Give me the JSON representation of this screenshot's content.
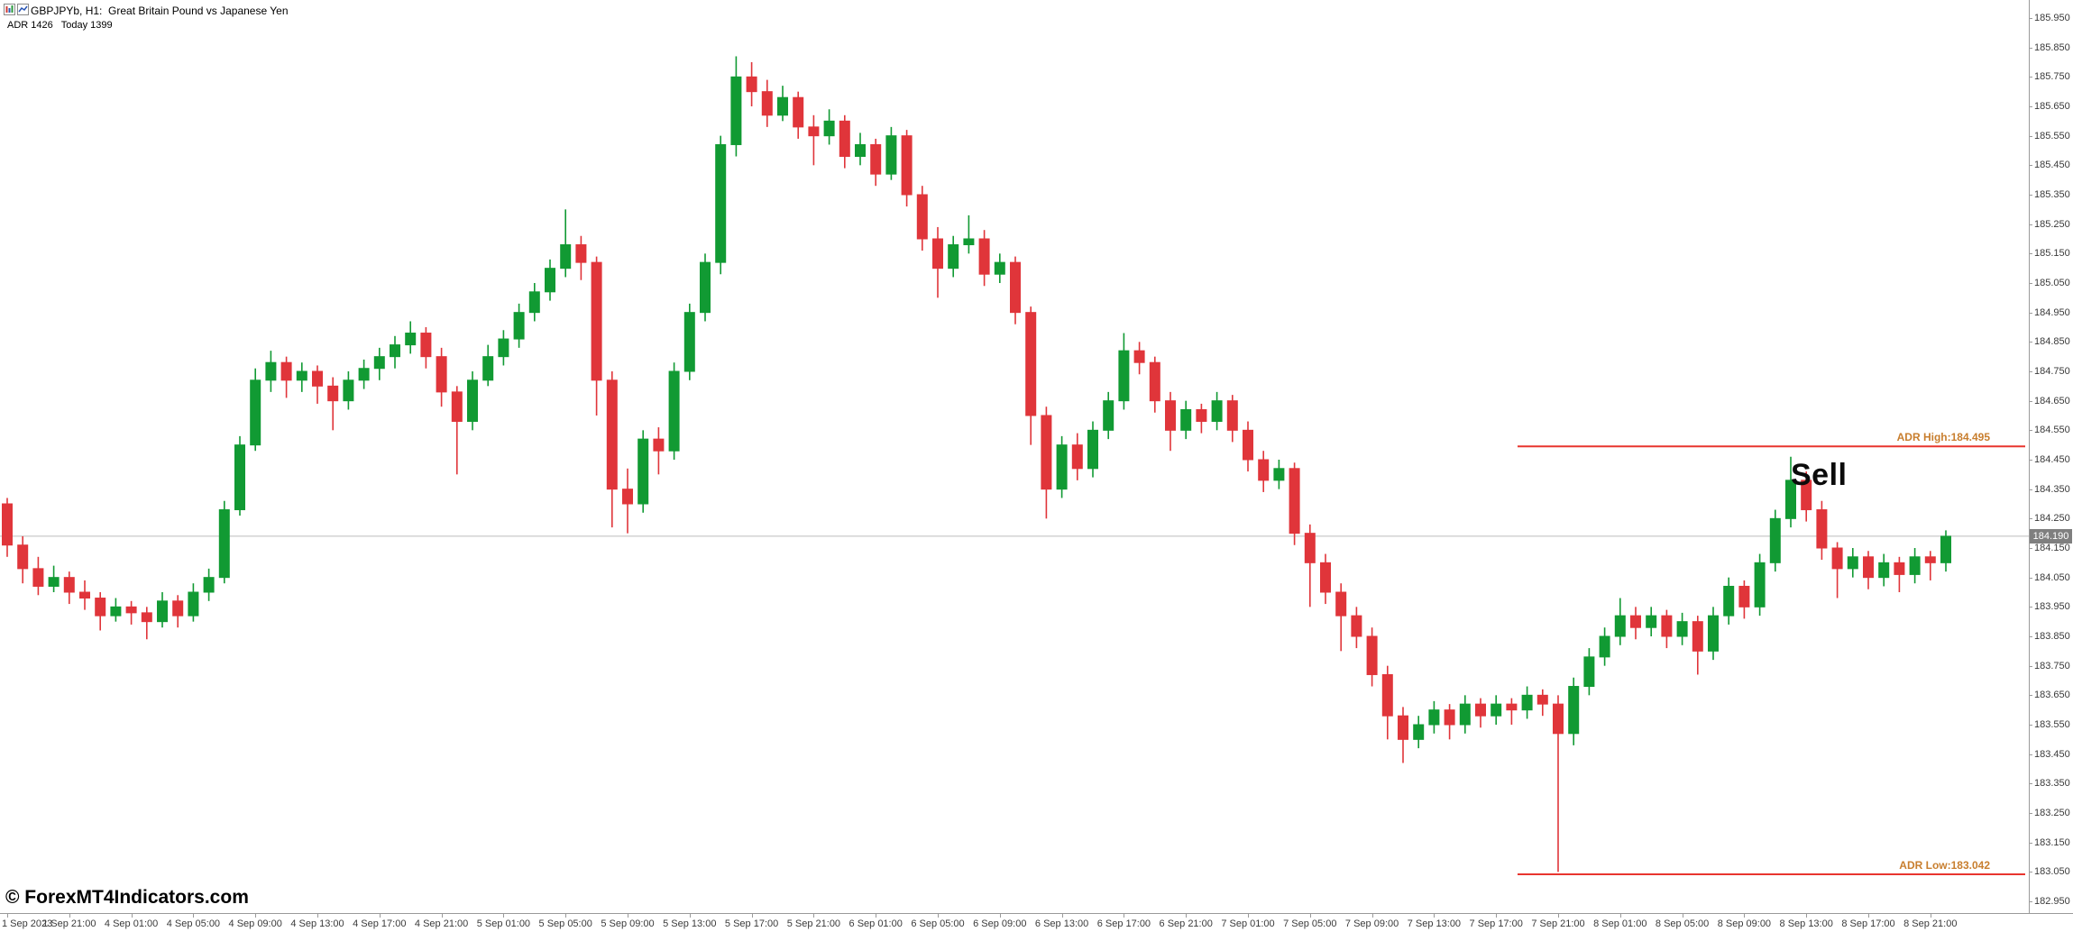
{
  "header": {
    "symbol_title": "GBPJPYb, H1:  Great Britain Pound vs Japanese Yen",
    "indicator_line": "ADR 1426   Today 1399"
  },
  "watermark": "© ForexMT4Indicators.com",
  "annotations": {
    "sell_label": "Sell"
  },
  "colors": {
    "up": "#119a33",
    "down": "#e0353a",
    "adr_line": "#e8352f",
    "adr_label": "#c87e2e",
    "bid_line": "#bdbdbd",
    "bid_tag_bg": "#7f7f7f",
    "axis_text": "#3a3a3a"
  },
  "chart_data": {
    "type": "candlestick",
    "symbol": "GBPJPYb",
    "timeframe": "H1",
    "bid": "184.190",
    "bid_value": 184.19,
    "ylim": [
      182.95,
      185.95
    ],
    "price_ticks": [
      "185.950",
      "185.850",
      "185.750",
      "185.650",
      "185.550",
      "185.450",
      "185.350",
      "185.250",
      "185.150",
      "185.050",
      "184.950",
      "184.850",
      "184.750",
      "184.650",
      "184.550",
      "184.450",
      "184.350",
      "184.250",
      "184.150",
      "184.050",
      "183.950",
      "183.850",
      "183.750",
      "183.650",
      "183.550",
      "183.450",
      "183.350",
      "183.250",
      "183.150",
      "183.050",
      "182.950"
    ],
    "x_tick_every": 4,
    "x_tick_labels": [
      "1 Sep 2023",
      "1 Sep 21:00",
      "4 Sep 01:00",
      "4 Sep 05:00",
      "4 Sep 09:00",
      "4 Sep 13:00",
      "4 Sep 17:00",
      "4 Sep 21:00",
      "5 Sep 01:00",
      "5 Sep 05:00",
      "5 Sep 09:00",
      "5 Sep 13:00",
      "5 Sep 17:00",
      "5 Sep 21:00",
      "6 Sep 01:00",
      "6 Sep 05:00",
      "6 Sep 09:00",
      "6 Sep 13:00",
      "6 Sep 17:00",
      "6 Sep 21:00",
      "7 Sep 01:00",
      "7 Sep 05:00",
      "7 Sep 09:00",
      "7 Sep 13:00",
      "7 Sep 17:00",
      "7 Sep 21:00",
      "8 Sep 01:00",
      "8 Sep 05:00",
      "8 Sep 09:00",
      "8 Sep 13:00",
      "8 Sep 17:00",
      "8 Sep 21:00"
    ],
    "adr_lines": [
      {
        "label": "ADR High:184.495",
        "price": 184.495
      },
      {
        "label": "ADR Low:183.042",
        "price": 183.042
      }
    ],
    "candles": [
      [
        184.3,
        184.32,
        184.12,
        184.16
      ],
      [
        184.16,
        184.19,
        184.03,
        184.08
      ],
      [
        184.08,
        184.12,
        183.99,
        184.02
      ],
      [
        184.02,
        184.09,
        184.0,
        184.05
      ],
      [
        184.05,
        184.07,
        183.96,
        184.0
      ],
      [
        184.0,
        184.04,
        183.94,
        183.98
      ],
      [
        183.98,
        184.0,
        183.87,
        183.92
      ],
      [
        183.92,
        183.98,
        183.9,
        183.95
      ],
      [
        183.95,
        183.97,
        183.89,
        183.93
      ],
      [
        183.93,
        183.95,
        183.84,
        183.9
      ],
      [
        183.9,
        184.0,
        183.88,
        183.97
      ],
      [
        183.97,
        183.99,
        183.88,
        183.92
      ],
      [
        183.92,
        184.03,
        183.9,
        184.0
      ],
      [
        184.0,
        184.08,
        183.97,
        184.05
      ],
      [
        184.05,
        184.31,
        184.03,
        184.28
      ],
      [
        184.28,
        184.53,
        184.26,
        184.5
      ],
      [
        184.5,
        184.76,
        184.48,
        184.72
      ],
      [
        184.72,
        184.82,
        184.68,
        184.78
      ],
      [
        184.78,
        184.8,
        184.66,
        184.72
      ],
      [
        184.72,
        184.78,
        184.68,
        184.75
      ],
      [
        184.75,
        184.77,
        184.64,
        184.7
      ],
      [
        184.7,
        184.73,
        184.55,
        184.65
      ],
      [
        184.65,
        184.75,
        184.62,
        184.72
      ],
      [
        184.72,
        184.79,
        184.69,
        184.76
      ],
      [
        184.76,
        184.83,
        184.72,
        184.8
      ],
      [
        184.8,
        184.87,
        184.76,
        184.84
      ],
      [
        184.84,
        184.92,
        184.81,
        184.88
      ],
      [
        184.88,
        184.9,
        184.76,
        184.8
      ],
      [
        184.8,
        184.83,
        184.63,
        184.68
      ],
      [
        184.68,
        184.7,
        184.4,
        184.58
      ],
      [
        184.58,
        184.75,
        184.55,
        184.72
      ],
      [
        184.72,
        184.84,
        184.7,
        184.8
      ],
      [
        184.8,
        184.89,
        184.77,
        184.86
      ],
      [
        184.86,
        184.98,
        184.83,
        184.95
      ],
      [
        184.95,
        185.05,
        184.92,
        185.02
      ],
      [
        185.02,
        185.13,
        184.99,
        185.1
      ],
      [
        185.1,
        185.3,
        185.07,
        185.18
      ],
      [
        185.18,
        185.21,
        185.06,
        185.12
      ],
      [
        185.12,
        185.14,
        184.6,
        184.72
      ],
      [
        184.72,
        184.75,
        184.22,
        184.35
      ],
      [
        184.35,
        184.42,
        184.2,
        184.3
      ],
      [
        184.3,
        184.55,
        184.27,
        184.52
      ],
      [
        184.52,
        184.56,
        184.4,
        184.48
      ],
      [
        184.48,
        184.78,
        184.45,
        184.75
      ],
      [
        184.75,
        184.98,
        184.72,
        184.95
      ],
      [
        184.95,
        185.15,
        184.92,
        185.12
      ],
      [
        185.12,
        185.55,
        185.08,
        185.52
      ],
      [
        185.52,
        185.82,
        185.48,
        185.75
      ],
      [
        185.75,
        185.8,
        185.65,
        185.7
      ],
      [
        185.7,
        185.74,
        185.58,
        185.62
      ],
      [
        185.62,
        185.72,
        185.6,
        185.68
      ],
      [
        185.68,
        185.7,
        185.54,
        185.58
      ],
      [
        185.58,
        185.62,
        185.45,
        185.55
      ],
      [
        185.55,
        185.64,
        185.52,
        185.6
      ],
      [
        185.6,
        185.62,
        185.44,
        185.48
      ],
      [
        185.48,
        185.56,
        185.45,
        185.52
      ],
      [
        185.52,
        185.54,
        185.38,
        185.42
      ],
      [
        185.42,
        185.58,
        185.4,
        185.55
      ],
      [
        185.55,
        185.57,
        185.31,
        185.35
      ],
      [
        185.35,
        185.38,
        185.16,
        185.2
      ],
      [
        185.2,
        185.24,
        185.0,
        185.1
      ],
      [
        185.1,
        185.21,
        185.07,
        185.18
      ],
      [
        185.18,
        185.28,
        185.15,
        185.2
      ],
      [
        185.2,
        185.23,
        185.04,
        185.08
      ],
      [
        185.08,
        185.15,
        185.05,
        185.12
      ],
      [
        185.12,
        185.14,
        184.91,
        184.95
      ],
      [
        184.95,
        184.97,
        184.5,
        184.6
      ],
      [
        184.6,
        184.63,
        184.25,
        184.35
      ],
      [
        184.35,
        184.53,
        184.32,
        184.5
      ],
      [
        184.5,
        184.54,
        184.38,
        184.42
      ],
      [
        184.42,
        184.58,
        184.39,
        184.55
      ],
      [
        184.55,
        184.68,
        184.52,
        184.65
      ],
      [
        184.65,
        184.88,
        184.62,
        184.82
      ],
      [
        184.82,
        184.85,
        184.74,
        184.78
      ],
      [
        184.78,
        184.8,
        184.61,
        184.65
      ],
      [
        184.65,
        184.68,
        184.48,
        184.55
      ],
      [
        184.55,
        184.65,
        184.52,
        184.62
      ],
      [
        184.62,
        184.64,
        184.54,
        184.58
      ],
      [
        184.58,
        184.68,
        184.55,
        184.65
      ],
      [
        184.65,
        184.67,
        184.51,
        184.55
      ],
      [
        184.55,
        184.58,
        184.41,
        184.45
      ],
      [
        184.45,
        184.48,
        184.34,
        184.38
      ],
      [
        184.38,
        184.45,
        184.35,
        184.42
      ],
      [
        184.42,
        184.44,
        184.16,
        184.2
      ],
      [
        184.2,
        184.23,
        183.95,
        184.1
      ],
      [
        184.1,
        184.13,
        183.96,
        184.0
      ],
      [
        184.0,
        184.03,
        183.8,
        183.92
      ],
      [
        183.92,
        183.95,
        183.81,
        183.85
      ],
      [
        183.85,
        183.88,
        183.68,
        183.72
      ],
      [
        183.72,
        183.75,
        183.5,
        183.58
      ],
      [
        183.58,
        183.61,
        183.42,
        183.5
      ],
      [
        183.5,
        183.58,
        183.47,
        183.55
      ],
      [
        183.55,
        183.63,
        183.52,
        183.6
      ],
      [
        183.6,
        183.62,
        183.5,
        183.55
      ],
      [
        183.55,
        183.65,
        183.52,
        183.62
      ],
      [
        183.62,
        183.64,
        183.54,
        183.58
      ],
      [
        183.58,
        183.65,
        183.55,
        183.62
      ],
      [
        183.62,
        183.64,
        183.55,
        183.6
      ],
      [
        183.6,
        183.68,
        183.57,
        183.65
      ],
      [
        183.65,
        183.67,
        183.58,
        183.62
      ],
      [
        183.62,
        183.65,
        183.05,
        183.52
      ],
      [
        183.52,
        183.71,
        183.48,
        183.68
      ],
      [
        183.68,
        183.81,
        183.65,
        183.78
      ],
      [
        183.78,
        183.88,
        183.75,
        183.85
      ],
      [
        183.85,
        183.98,
        183.82,
        183.92
      ],
      [
        183.92,
        183.95,
        183.84,
        183.88
      ],
      [
        183.88,
        183.95,
        183.85,
        183.92
      ],
      [
        183.92,
        183.94,
        183.81,
        183.85
      ],
      [
        183.85,
        183.93,
        183.82,
        183.9
      ],
      [
        183.9,
        183.92,
        183.72,
        183.8
      ],
      [
        183.8,
        183.95,
        183.77,
        183.92
      ],
      [
        183.92,
        184.05,
        183.89,
        184.02
      ],
      [
        184.02,
        184.04,
        183.91,
        183.95
      ],
      [
        183.95,
        184.13,
        183.92,
        184.1
      ],
      [
        184.1,
        184.28,
        184.07,
        184.25
      ],
      [
        184.25,
        184.46,
        184.22,
        184.38
      ],
      [
        184.38,
        184.41,
        184.24,
        184.28
      ],
      [
        184.28,
        184.31,
        184.11,
        184.15
      ],
      [
        184.15,
        184.17,
        183.98,
        184.08
      ],
      [
        184.08,
        184.15,
        184.05,
        184.12
      ],
      [
        184.12,
        184.14,
        184.01,
        184.05
      ],
      [
        184.05,
        184.13,
        184.02,
        184.1
      ],
      [
        184.1,
        184.12,
        184.0,
        184.06
      ],
      [
        184.06,
        184.15,
        184.03,
        184.12
      ],
      [
        184.12,
        184.14,
        184.04,
        184.1
      ],
      [
        184.1,
        184.21,
        184.07,
        184.19
      ]
    ]
  }
}
